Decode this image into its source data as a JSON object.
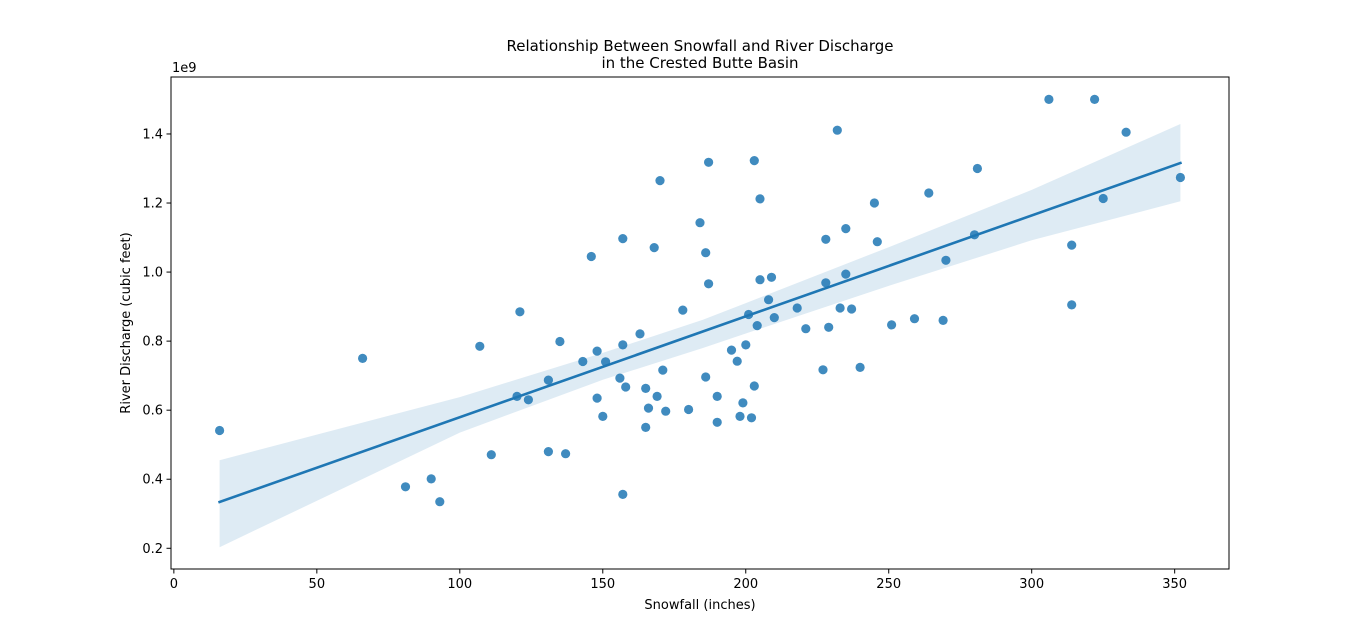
{
  "chart_data": {
    "type": "scatter",
    "title_line1": "Relationship Between Snowfall and River Discharge",
    "title_line2": "in the Crested Butte Basin",
    "xlabel": "Snowfall (inches)",
    "ylabel": "River Discharge (cubic feet)",
    "y_offset_label": "1e9",
    "xlim": [
      -1,
      369
    ],
    "ylim": [
      0.14,
      1.565
    ],
    "x_ticks": [
      0,
      50,
      100,
      150,
      200,
      250,
      300,
      350
    ],
    "x_tick_labels": [
      "0",
      "50",
      "100",
      "150",
      "200",
      "250",
      "300",
      "350"
    ],
    "y_ticks": [
      0.2,
      0.4,
      0.6,
      0.8,
      1.0,
      1.2,
      1.4
    ],
    "y_tick_labels": [
      "0.2",
      "0.4",
      "0.6",
      "0.8",
      "1.0",
      "1.2",
      "1.4"
    ],
    "grid": false,
    "colors": {
      "points": "#1f77b4",
      "regression_line": "#1f77b4",
      "confidence_band": "#1f77b4"
    },
    "regression": {
      "x": [
        16,
        352
      ],
      "y": [
        0.334,
        1.316
      ]
    },
    "confidence_band": {
      "x": [
        16,
        100,
        150,
        185,
        200,
        250,
        300,
        352
      ],
      "upper": [
        0.455,
        0.638,
        0.766,
        0.862,
        0.91,
        1.072,
        1.238,
        1.429
      ],
      "lower": [
        0.203,
        0.535,
        0.688,
        0.78,
        0.822,
        0.96,
        1.092,
        1.205
      ]
    },
    "points": {
      "x": [
        16,
        66,
        81,
        90,
        93,
        107,
        111,
        120,
        121,
        124,
        131,
        131,
        135,
        137,
        143,
        146,
        148,
        148,
        150,
        151,
        156,
        157,
        157,
        157,
        158,
        163,
        165,
        165,
        166,
        168,
        169,
        170,
        171,
        172,
        178,
        180,
        184,
        186,
        186,
        187,
        187,
        190,
        190,
        195,
        197,
        198,
        199,
        200,
        201,
        202,
        203,
        203,
        204,
        205,
        205,
        208,
        209,
        210,
        218,
        221,
        227,
        228,
        228,
        229,
        232,
        233,
        235,
        235,
        237,
        240,
        245,
        246,
        251,
        259,
        264,
        269,
        270,
        280,
        281,
        306,
        314,
        314,
        322,
        325,
        333,
        352
      ],
      "y": [
        0.541,
        0.75,
        0.378,
        0.401,
        0.335,
        0.785,
        0.471,
        0.64,
        0.885,
        0.63,
        0.48,
        0.687,
        0.799,
        0.474,
        0.741,
        1.045,
        0.771,
        0.635,
        0.582,
        0.74,
        0.693,
        0.356,
        0.789,
        1.097,
        0.667,
        0.821,
        0.663,
        0.55,
        0.606,
        1.071,
        0.64,
        1.265,
        0.716,
        0.597,
        0.89,
        0.602,
        1.143,
        0.696,
        1.056,
        0.966,
        1.318,
        0.565,
        0.64,
        0.774,
        0.742,
        0.582,
        0.621,
        0.789,
        0.877,
        0.578,
        0.67,
        1.323,
        0.845,
        0.978,
        1.212,
        0.92,
        0.985,
        0.868,
        0.896,
        0.836,
        0.717,
        0.969,
        1.095,
        0.84,
        1.411,
        0.896,
        0.994,
        1.126,
        0.893,
        0.724,
        1.2,
        1.088,
        0.847,
        0.865,
        1.229,
        0.86,
        1.034,
        1.108,
        1.3,
        1.5,
        0.905,
        1.078,
        1.5,
        1.213,
        1.405,
        1.274
      ]
    }
  }
}
